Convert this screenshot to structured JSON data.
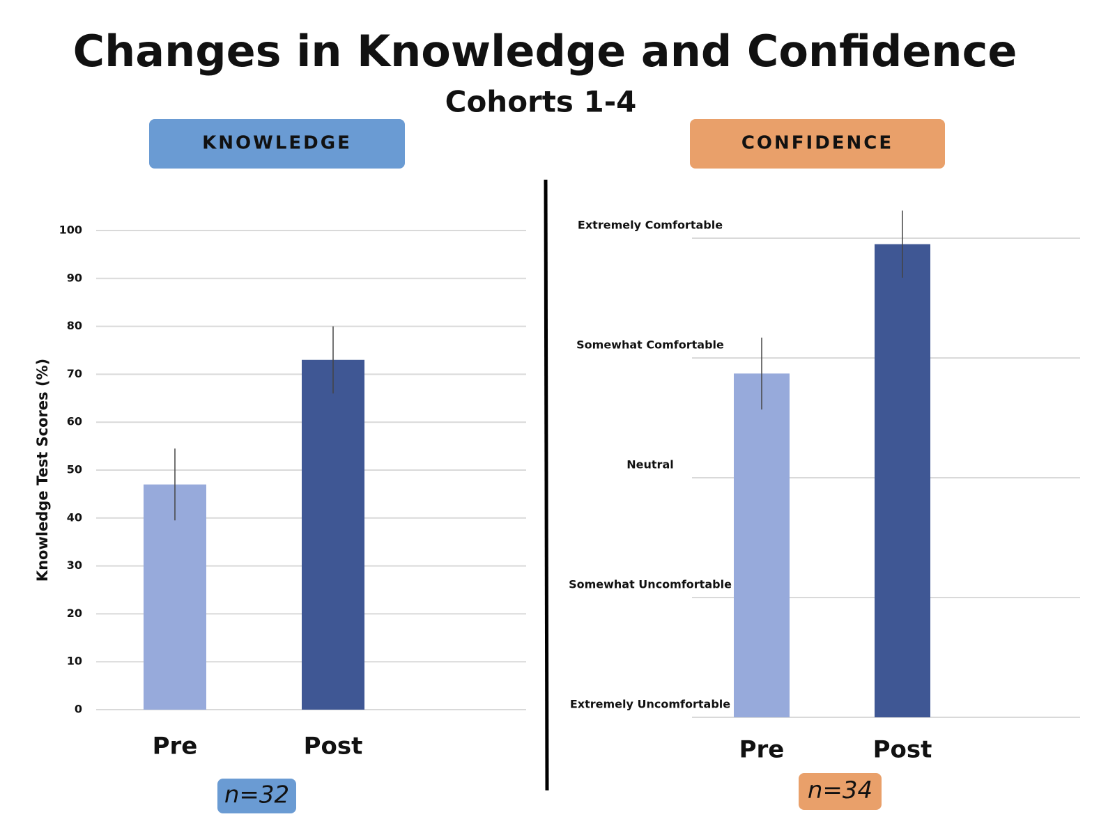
{
  "title": "Changes in Knowledge and Confidence",
  "subtitle": "Cohorts 1-4",
  "chart_data": [
    {
      "type": "bar",
      "header": "KNOWLEDGE",
      "header_color": "#6a9bd3",
      "y_label": "Knowledge Test Scores (%)",
      "categories": [
        "Pre",
        "Post"
      ],
      "values": [
        47,
        73
      ],
      "errors": [
        7.5,
        7
      ],
      "colors": [
        "#97aadb",
        "#3f5794"
      ],
      "ylim": [
        0,
        100
      ],
      "yticks": [
        0,
        10,
        20,
        30,
        40,
        50,
        60,
        70,
        80,
        90,
        100
      ],
      "grid": true,
      "note": "n=32"
    },
    {
      "type": "bar",
      "header": "CONFIDENCE",
      "header_color": "#e9a06a",
      "categories": [
        "Pre",
        "Post"
      ],
      "values": [
        3.87,
        4.95
      ],
      "errors": [
        0.3,
        0.28
      ],
      "colors": [
        "#97aadb",
        "#3f5794"
      ],
      "ylim": [
        1,
        5
      ],
      "yticks": [
        {
          "value": 1,
          "label": "Extremely Uncomfortable"
        },
        {
          "value": 2,
          "label": "Somewhat Uncomfortable"
        },
        {
          "value": 3,
          "label": "Neutral"
        },
        {
          "value": 4,
          "label": "Somewhat Comfortable"
        },
        {
          "value": 5,
          "label": "Extremely Comfortable"
        }
      ],
      "grid": true,
      "note": "n=34"
    }
  ]
}
